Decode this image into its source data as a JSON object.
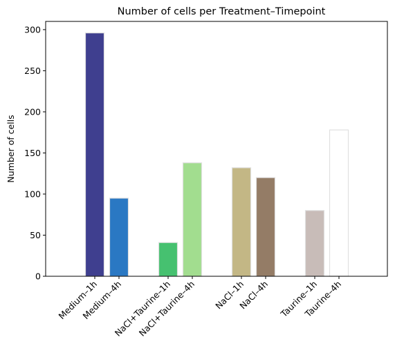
{
  "chart_data": {
    "type": "bar",
    "title": "Number of cells per Treatment–Timepoint",
    "xlabel": "",
    "ylabel": "Number of cells",
    "ylim": [
      0,
      310
    ],
    "yticks": [
      0,
      50,
      100,
      150,
      200,
      250,
      300
    ],
    "categories": [
      "Medium–1h",
      "Medium–4h",
      "NaCl+Taurine–1h",
      "NaCl+Taurine–4h",
      "NaCl–1h",
      "NaCl–4h",
      "Taurine–1h",
      "Taurine–4h"
    ],
    "values": [
      296,
      95,
      41,
      138,
      132,
      120,
      80,
      178
    ],
    "colors": [
      "#3f3f8f",
      "#2a78c3",
      "#46c170",
      "#a2dd8f",
      "#c3b785",
      "#947c66",
      "#c8bcb8",
      "#ffffff"
    ],
    "groups": [
      "Medium",
      "NaCl+Taurine",
      "NaCl",
      "Taurine"
    ],
    "grid": false,
    "legend": "none"
  }
}
